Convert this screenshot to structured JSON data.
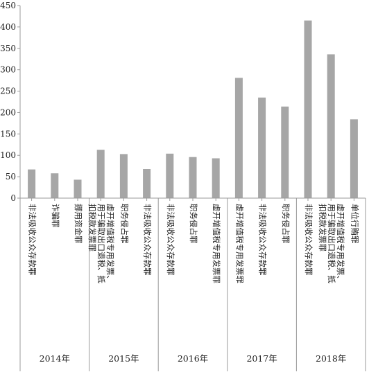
{
  "chart_data": {
    "type": "bar",
    "ylim": [
      0,
      450
    ],
    "yticks": [
      0,
      50,
      100,
      150,
      200,
      250,
      300,
      350,
      400,
      450
    ],
    "grid": false,
    "bar_color": "#a6a6a6",
    "axis_color": "#9a9a9a",
    "groups": [
      {
        "label": "2014年",
        "bars": [
          {
            "category": "非法吸收公众存款罪",
            "value": 67
          },
          {
            "category": "诈骗罪",
            "value": 58
          },
          {
            "category": "挪用资金罪",
            "value": 43
          }
        ]
      },
      {
        "label": "2015年",
        "bars": [
          {
            "category": "虚开增值税专用发票、用于骗取出口退税、抵扣税款发票罪",
            "value": 113
          },
          {
            "category": "职务侵占罪",
            "value": 103
          },
          {
            "category": "非法吸收公众存款罪",
            "value": 68
          }
        ]
      },
      {
        "label": "2016年",
        "bars": [
          {
            "category": "非法吸收公众存款罪",
            "value": 104
          },
          {
            "category": "职务侵占罪",
            "value": 96
          },
          {
            "category": "虚开增值税专用发票罪",
            "value": 93
          }
        ]
      },
      {
        "label": "2017年",
        "bars": [
          {
            "category": "虚开增值税专用发票罪",
            "value": 281
          },
          {
            "category": "非法吸收公众存款罪",
            "value": 235
          },
          {
            "category": "职务侵占罪",
            "value": 214
          }
        ]
      },
      {
        "label": "2018年",
        "bars": [
          {
            "category": "非法吸收公众存款罪",
            "value": 415
          },
          {
            "category": "虚开增值税专用发票、用于骗取出口退税、抵扣税款发票罪",
            "value": 336
          },
          {
            "category": "单位行贿罪",
            "value": 184
          }
        ]
      }
    ]
  }
}
